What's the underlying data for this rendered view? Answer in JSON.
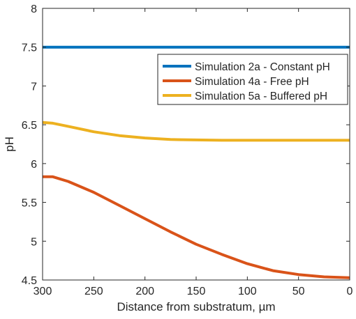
{
  "chart_data": {
    "type": "line",
    "title": "",
    "xlabel": "Distance from substratum, µm",
    "ylabel": "pH",
    "xlim": [
      300,
      0
    ],
    "ylim": [
      4.5,
      8
    ],
    "x_reversed": true,
    "xticks": [
      "300",
      "250",
      "200",
      "150",
      "100",
      "50",
      "0"
    ],
    "yticks": [
      "4.5",
      "5",
      "5.5",
      "6",
      "6.5",
      "7",
      "7.5",
      "8"
    ],
    "legend_position": "top-right",
    "grid": false,
    "series": [
      {
        "name": "Simulation 2a - Constant pH",
        "color": "#0072BD",
        "x": [
          300,
          250,
          200,
          150,
          100,
          50,
          0
        ],
        "y": [
          7.5,
          7.5,
          7.5,
          7.5,
          7.5,
          7.5,
          7.5
        ]
      },
      {
        "name": "Simulation 4a - Free pH",
        "color": "#D95319",
        "x": [
          300,
          290,
          275,
          250,
          225,
          200,
          175,
          150,
          125,
          100,
          75,
          50,
          25,
          0
        ],
        "y": [
          5.83,
          5.83,
          5.77,
          5.63,
          5.46,
          5.29,
          5.12,
          4.96,
          4.83,
          4.71,
          4.62,
          4.57,
          4.54,
          4.53
        ]
      },
      {
        "name": "Simulation 5a - Buffered pH",
        "color": "#EDB120",
        "x": [
          300,
          290,
          275,
          250,
          225,
          200,
          175,
          150,
          125,
          100,
          50,
          0
        ],
        "y": [
          6.53,
          6.52,
          6.48,
          6.41,
          6.36,
          6.33,
          6.31,
          6.305,
          6.3,
          6.3,
          6.3,
          6.3
        ]
      }
    ]
  }
}
